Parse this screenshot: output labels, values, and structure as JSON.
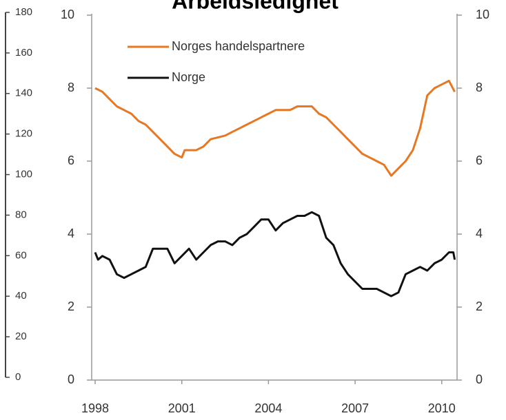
{
  "chart_data": {
    "type": "line",
    "title": "Arbeidsledighet",
    "xlim": [
      1997.88,
      2010.53
    ],
    "xticks": [
      1998,
      2001,
      2004,
      2007,
      2010
    ],
    "ylim": [
      0,
      10
    ],
    "yticks": [
      0,
      2,
      4,
      6,
      8,
      10
    ],
    "y2lim": [
      0,
      10
    ],
    "y2ticks": [
      0,
      2,
      4,
      6,
      8,
      10
    ],
    "y3lim": [
      0,
      180
    ],
    "y3ticks": [
      0,
      20,
      40,
      60,
      80,
      100,
      120,
      140,
      160,
      180
    ],
    "legend": "upper left",
    "series": [
      {
        "name": "Norges handelspartnere",
        "color": "#e87722",
        "x": [
          1998.0,
          1998.25,
          1998.5,
          1998.75,
          1999.0,
          1999.25,
          1999.5,
          1999.75,
          2000.0,
          2000.25,
          2000.5,
          2000.75,
          2001.0,
          2001.1,
          2001.5,
          2001.75,
          2002.0,
          2002.5,
          2002.75,
          2003.0,
          2003.25,
          2003.5,
          2003.75,
          2004.0,
          2004.25,
          2004.5,
          2004.75,
          2005.0,
          2005.25,
          2005.5,
          2005.75,
          2006.0,
          2006.25,
          2006.5,
          2006.75,
          2007.0,
          2007.25,
          2007.5,
          2007.75,
          2008.0,
          2008.25,
          2008.5,
          2008.75,
          2009.0,
          2009.25,
          2009.5,
          2009.75,
          2010.0,
          2010.25,
          2010.45
        ],
        "values": [
          8.0,
          7.9,
          7.7,
          7.5,
          7.4,
          7.3,
          7.1,
          7.0,
          6.8,
          6.6,
          6.4,
          6.2,
          6.1,
          6.3,
          6.3,
          6.4,
          6.6,
          6.7,
          6.8,
          6.9,
          7.0,
          7.1,
          7.2,
          7.3,
          7.4,
          7.4,
          7.4,
          7.5,
          7.5,
          7.5,
          7.3,
          7.2,
          7.0,
          6.8,
          6.6,
          6.4,
          6.2,
          6.1,
          6.0,
          5.9,
          5.6,
          5.8,
          6.0,
          6.3,
          6.9,
          7.8,
          8.0,
          8.1,
          8.2,
          7.9
        ]
      },
      {
        "name": "Norge",
        "color": "#111111",
        "x": [
          1998.0,
          1998.1,
          1998.25,
          1998.5,
          1998.75,
          1999.0,
          1999.25,
          1999.5,
          1999.75,
          2000.0,
          2000.25,
          2000.5,
          2000.75,
          2001.0,
          2001.25,
          2001.5,
          2001.75,
          2002.0,
          2002.25,
          2002.5,
          2002.75,
          2003.0,
          2003.25,
          2003.5,
          2003.75,
          2004.0,
          2004.25,
          2004.5,
          2004.75,
          2005.0,
          2005.25,
          2005.5,
          2005.75,
          2006.0,
          2006.25,
          2006.5,
          2006.75,
          2007.0,
          2007.25,
          2007.5,
          2007.75,
          2008.0,
          2008.25,
          2008.5,
          2008.75,
          2009.0,
          2009.25,
          2009.5,
          2009.75,
          2010.0,
          2010.25,
          2010.4,
          2010.45
        ],
        "values": [
          3.5,
          3.3,
          3.4,
          3.3,
          2.9,
          2.8,
          2.9,
          3.0,
          3.1,
          3.6,
          3.6,
          3.6,
          3.2,
          3.4,
          3.6,
          3.3,
          3.5,
          3.7,
          3.8,
          3.8,
          3.7,
          3.9,
          4.0,
          4.2,
          4.4,
          4.4,
          4.1,
          4.3,
          4.4,
          4.5,
          4.5,
          4.6,
          4.5,
          3.9,
          3.7,
          3.2,
          2.9,
          2.7,
          2.5,
          2.5,
          2.5,
          2.4,
          2.3,
          2.4,
          2.9,
          3.0,
          3.1,
          3.0,
          3.2,
          3.3,
          3.5,
          3.5,
          3.3
        ]
      }
    ]
  }
}
